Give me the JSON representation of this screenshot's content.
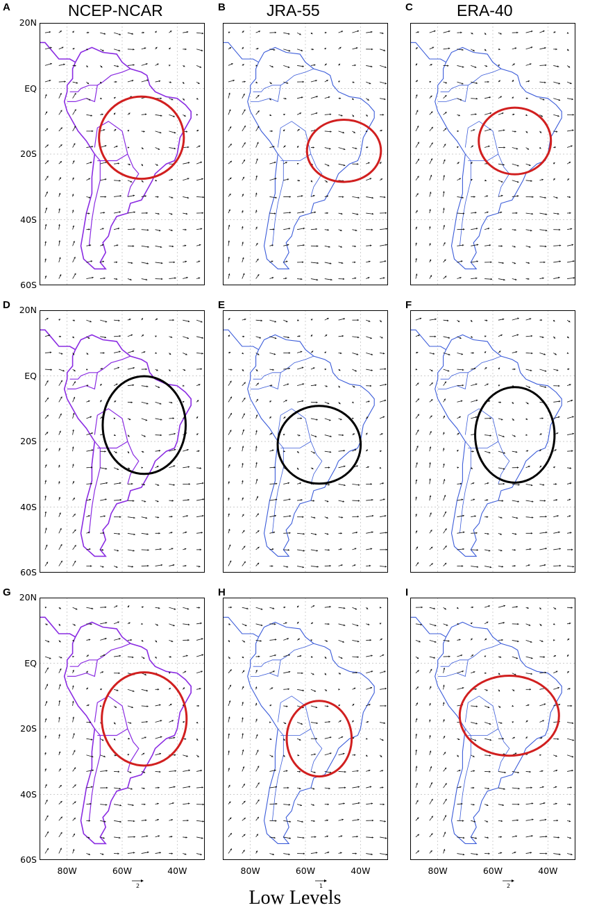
{
  "columns": [
    {
      "title": "NCEP-NCAR",
      "coast_color": "#8a2be2"
    },
    {
      "title": "JRA-55",
      "coast_color": "#3a5bd9"
    },
    {
      "title": "ERA-40",
      "coast_color": "#3a5bd9"
    }
  ],
  "panels": [
    {
      "letter": "A",
      "circle_color": "#d11f1f",
      "lat_labels": [
        "20N",
        "EQ",
        "20S",
        "40S",
        "60S"
      ]
    },
    {
      "letter": "B",
      "circle_color": "#d11f1f"
    },
    {
      "letter": "C",
      "circle_color": "#d11f1f"
    },
    {
      "letter": "D",
      "circle_color": "#000000",
      "lat_labels": [
        "20N",
        "EQ",
        "20S",
        "40S",
        "60S"
      ]
    },
    {
      "letter": "E",
      "circle_color": "#000000"
    },
    {
      "letter": "F",
      "circle_color": "#000000"
    },
    {
      "letter": "G",
      "circle_color": "#d11f1f",
      "lat_labels": [
        "20N",
        "EQ",
        "20S",
        "40S",
        "60S"
      ]
    },
    {
      "letter": "H",
      "circle_color": "#d11f1f"
    },
    {
      "letter": "I",
      "circle_color": "#d11f1f"
    }
  ],
  "lon_labels": [
    "80W",
    "60W",
    "40W"
  ],
  "reference_vectors": [
    "2",
    "1",
    "2"
  ],
  "footer": "Low Levels",
  "colors": {
    "vector": "#111111",
    "grid": "#bbbbbb",
    "frame": "#000000"
  }
}
